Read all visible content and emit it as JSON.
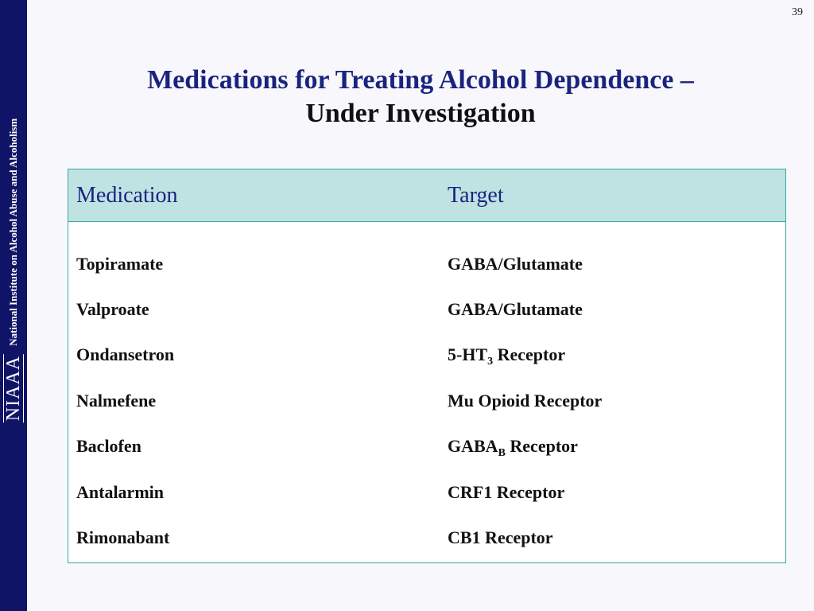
{
  "slide_number": "39",
  "sidebar": {
    "logo": "NIAAA",
    "organization": "National Institute on Alcohol Abuse and Alcoholism"
  },
  "title": {
    "line1": "Medications for Treating Alcohol Dependence –",
    "line2": "Under Investigation"
  },
  "table": {
    "headers": [
      "Medication",
      "Target"
    ],
    "rows": [
      {
        "medication": "Topiramate",
        "target": "GABA/Glutamate",
        "target_sub": "",
        "target_suffix": ""
      },
      {
        "medication": "Valproate",
        "target": "GABA/Glutamate",
        "target_sub": "",
        "target_suffix": ""
      },
      {
        "medication": "Ondansetron",
        "target": "5-HT",
        "target_sub": "3",
        "target_suffix": " Receptor"
      },
      {
        "medication": "Nalmefene",
        "target": "Mu Opioid Receptor",
        "target_sub": "",
        "target_suffix": ""
      },
      {
        "medication": "Baclofen",
        "target": "GABA",
        "target_sub": "B",
        "target_suffix": " Receptor"
      },
      {
        "medication": "Antalarmin",
        "target": "CRF1 Receptor",
        "target_sub": "",
        "target_suffix": ""
      },
      {
        "medication": "Rimonabant",
        "target": "CB1 Receptor",
        "target_sub": "",
        "target_suffix": ""
      }
    ]
  },
  "colors": {
    "sidebar": "#101466",
    "title_accent": "#1a237e",
    "header_background": "#bfe3e3",
    "table_border": "#3aa89a"
  }
}
